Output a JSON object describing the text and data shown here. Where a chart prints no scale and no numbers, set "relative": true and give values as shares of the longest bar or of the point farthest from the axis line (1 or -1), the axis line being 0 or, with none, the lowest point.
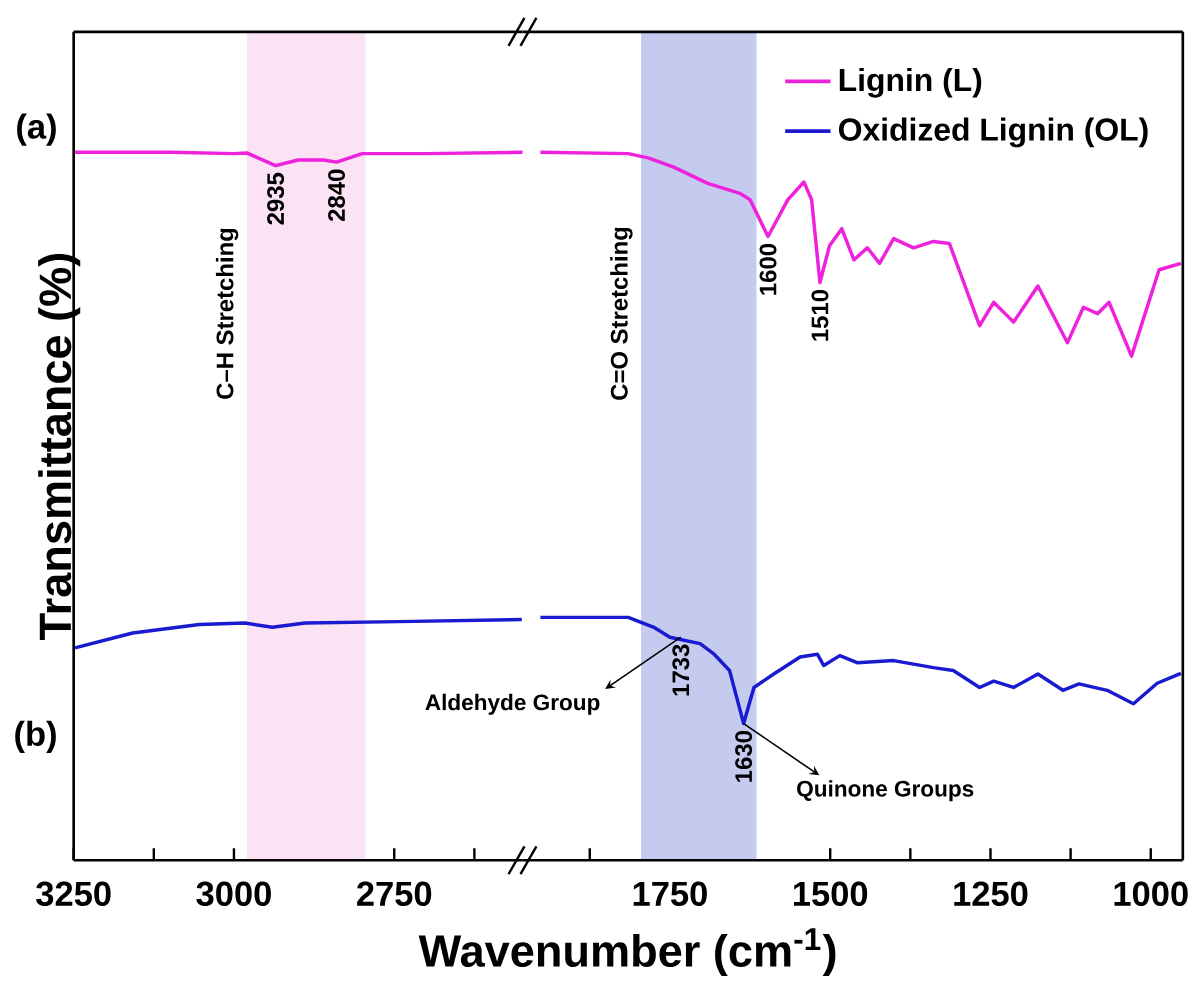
{
  "chart_data": [
    {
      "type": "line",
      "relative": true,
      "ylabel": "Transmittance (%)",
      "xlim": [
        3250,
        2550
      ],
      "xticks": [
        3250,
        {
          "value": 3125,
          "label": null
        },
        3000,
        {
          "value": 2875,
          "label": null
        },
        2750,
        {
          "value": 2625,
          "label": null
        }
      ],
      "series": [
        {
          "color": "#ee22dd",
          "x": [
            3250,
            3100,
            3000,
            2980,
            2935,
            2900,
            2860,
            2840,
            2800,
            2700,
            2550
          ],
          "values": [
            1.0,
            1.0,
            0.998,
            0.999,
            0.981,
            0.989,
            0.989,
            0.986,
            0.998,
            0.998,
            1.0
          ]
        },
        {
          "color": "#1a1ad0",
          "x": [
            3248,
            3158,
            3054,
            2983,
            2940,
            2889,
            2744,
            2551
          ],
          "values": [
            0.3,
            0.321,
            0.333,
            0.335,
            0.329,
            0.335,
            0.337,
            0.34
          ]
        }
      ],
      "bands": [
        {
          "axis": "x",
          "from": 2980,
          "to": 2795,
          "label": "C–H Stretching",
          "color": "#fbe3f5"
        }
      ],
      "annotations": [
        "(a)",
        "(b)",
        {
          "text": "2935",
          "x": 2935,
          "y": 0.981
        },
        {
          "text": "2840",
          "x": 2840,
          "y": 0.986
        }
      ]
    },
    {
      "type": "line",
      "relative": true,
      "xlabel": "Wavenumber (cm$^{-1}$)",
      "xlim": [
        1980,
        950
      ],
      "legend": "top right",
      "xticks": [
        {
          "value": 1875,
          "label": null
        },
        1750,
        {
          "value": 1625,
          "label": null
        },
        1500,
        {
          "value": 1375,
          "label": null
        },
        1250,
        {
          "value": 1125,
          "label": null
        },
        1000
      ],
      "series": [
        {
          "name": "Lignin (L)",
          "color": "#ee22dd",
          "x": [
            1952,
            1815,
            1784,
            1744,
            1691,
            1641,
            1625,
            1597,
            1566,
            1541,
            1529,
            1516,
            1501,
            1482,
            1463,
            1442,
            1423,
            1401,
            1370,
            1339,
            1314,
            1267,
            1245,
            1214,
            1176,
            1130,
            1105,
            1083,
            1065,
            1030,
            987,
            953
          ],
          "values": [
            1.0,
            0.998,
            0.992,
            0.979,
            0.956,
            0.942,
            0.933,
            0.881,
            0.933,
            0.958,
            0.933,
            0.816,
            0.868,
            0.892,
            0.848,
            0.865,
            0.843,
            0.878,
            0.865,
            0.874,
            0.871,
            0.755,
            0.788,
            0.76,
            0.811,
            0.731,
            0.781,
            0.772,
            0.788,
            0.712,
            0.834,
            0.843
          ]
        },
        {
          "name": "Oxidized Lignin (OL)",
          "color": "#1a1ad0",
          "x": [
            1952,
            1815,
            1775,
            1750,
            1703,
            1681,
            1657,
            1635,
            1619,
            1588,
            1547,
            1520,
            1510,
            1485,
            1458,
            1401,
            1339,
            1308,
            1267,
            1245,
            1214,
            1176,
            1137,
            1112,
            1068,
            1027,
            990,
            953
          ],
          "values": [
            0.343,
            0.343,
            0.329,
            0.315,
            0.306,
            0.291,
            0.268,
            0.193,
            0.244,
            0.263,
            0.287,
            0.291,
            0.275,
            0.289,
            0.279,
            0.282,
            0.272,
            0.268,
            0.244,
            0.253,
            0.244,
            0.263,
            0.24,
            0.249,
            0.24,
            0.221,
            0.25,
            0.264
          ]
        }
      ],
      "bands": [
        {
          "axis": "x",
          "from": 1795,
          "to": 1615,
          "label": "C=O Stretching",
          "color": "#c5cbef"
        }
      ],
      "annotations": [
        {
          "text": "1600",
          "x": 1597,
          "y": 0.881
        },
        {
          "text": "1510",
          "x": 1516,
          "y": 0.816
        },
        {
          "text": "1733",
          "x": 1733,
          "y": 0.315
        },
        {
          "text": "1630",
          "x": 1635,
          "y": 0.193
        },
        {
          "text": "Aldehyde Group",
          "x": 1733,
          "y": 0.315
        },
        {
          "text": "Quinone Groups",
          "x": 1635,
          "y": 0.193
        }
      ]
    }
  ]
}
